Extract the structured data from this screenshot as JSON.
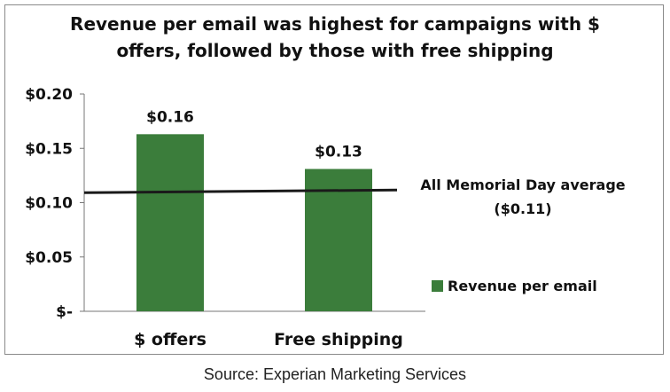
{
  "chart_data": {
    "type": "bar",
    "title_lines": [
      "Revenue per email was highest for campaigns with $",
      "offers, followed by those with free shipping"
    ],
    "categories": [
      "$ offers",
      "Free shipping"
    ],
    "series": [
      {
        "name": "Revenue per email",
        "values": [
          0.163,
          0.131
        ],
        "color": "#3b7d3b"
      }
    ],
    "data_labels": [
      "$0.16",
      "$0.13"
    ],
    "y_ticks": [
      {
        "value": 0.2,
        "label": "$0.20"
      },
      {
        "value": 0.15,
        "label": "$0.15"
      },
      {
        "value": 0.1,
        "label": "$0.10"
      },
      {
        "value": 0.05,
        "label": "$0.05"
      },
      {
        "value": 0.0,
        "label": "$-"
      }
    ],
    "ylim": [
      0,
      0.2
    ],
    "grid": false,
    "legend_position": "right",
    "reference_line": {
      "value": 0.11,
      "label_lines": [
        "All Memorial Day average",
        "($0.11)"
      ],
      "color": "#1a1a1a"
    }
  },
  "source": "Source: Experian Marketing Services"
}
